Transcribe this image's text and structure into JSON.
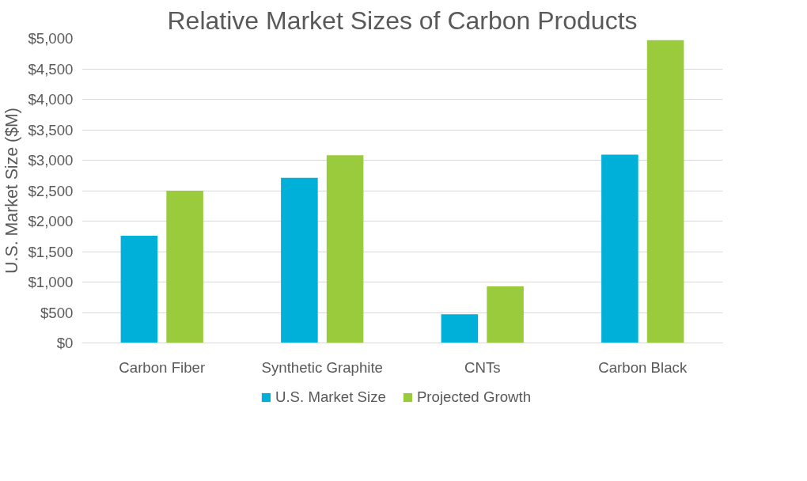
{
  "chart_data": {
    "type": "bar",
    "title": "Relative Market Sizes of Carbon Products",
    "ylabel": "U.S. Market Size ($M)",
    "categories": [
      "Carbon Fiber",
      "Synthetic Graphite",
      "CNTs",
      "Carbon Black"
    ],
    "series": [
      {
        "name": "U.S. Market Size",
        "color": "#00b0d8",
        "values": [
          1760,
          2710,
          470,
          3090
        ]
      },
      {
        "name": "Projected Growth",
        "color": "#9acb3c",
        "values": [
          2500,
          3080,
          930,
          4970
        ]
      }
    ],
    "ylim": [
      0,
      5000
    ],
    "yticks": [
      {
        "value": 0,
        "label": "$0"
      },
      {
        "value": 500,
        "label": "$500"
      },
      {
        "value": 1000,
        "label": "$1,000"
      },
      {
        "value": 1500,
        "label": "$1,500"
      },
      {
        "value": 2000,
        "label": "$2,000"
      },
      {
        "value": 2500,
        "label": "$2,500"
      },
      {
        "value": 3000,
        "label": "$3,000"
      },
      {
        "value": 3500,
        "label": "$3,500"
      },
      {
        "value": 4000,
        "label": "$4,000"
      },
      {
        "value": 4500,
        "label": "$4,500"
      },
      {
        "value": 5000,
        "label": "$5,000"
      }
    ],
    "grid": "y",
    "legend": "bottom"
  }
}
